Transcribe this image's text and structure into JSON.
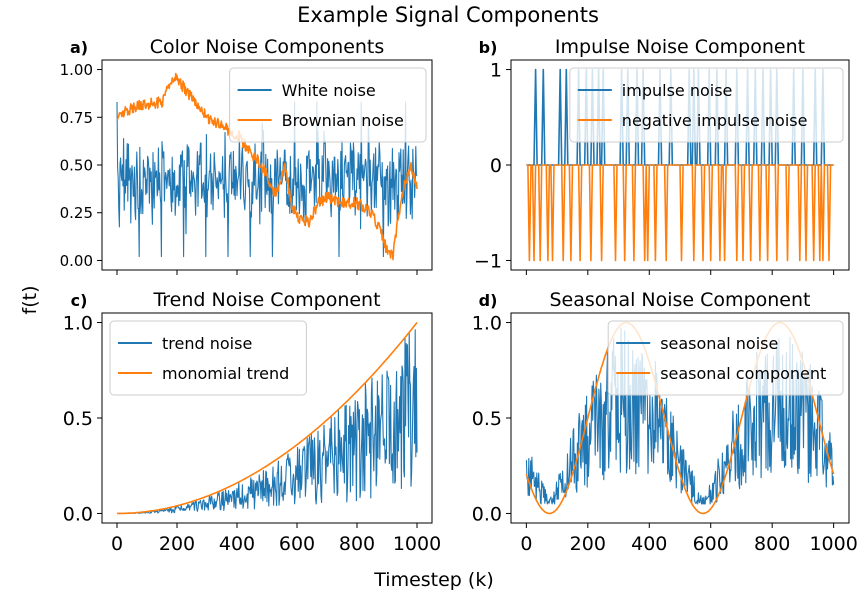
{
  "figure": {
    "suptitle": "Example Signal Components",
    "xlabel": "Timestep (k)",
    "ylabel": "f(t)"
  },
  "colors": {
    "blue": "#1f77b4",
    "orange": "#ff7f0e"
  },
  "chart_data": [
    {
      "id": "a",
      "type": "line",
      "panel_label": "a)",
      "title": "Color Noise Components",
      "xlim": [
        -50,
        1050
      ],
      "ylim": [
        -0.05,
        1.05
      ],
      "yticks": [
        0.0,
        0.25,
        0.5,
        0.75,
        1.0
      ],
      "ytick_labels": [
        "0.00",
        "0.25",
        "0.50",
        "0.75",
        "1.00"
      ],
      "xticks": [
        0,
        200,
        400,
        600,
        800,
        1000
      ],
      "xtick_labels": [],
      "legend_position": "upper right",
      "series": [
        {
          "name": "White noise",
          "kind": "white",
          "color": "#1f77b4",
          "min": 0.0,
          "max": 0.85
        },
        {
          "name": "Brownian noise",
          "kind": "brownian",
          "color": "#ff7f0e",
          "anchors": [
            [
              0,
              0.75
            ],
            [
              50,
              0.8
            ],
            [
              100,
              0.82
            ],
            [
              150,
              0.83
            ],
            [
              190,
              0.97
            ],
            [
              250,
              0.85
            ],
            [
              300,
              0.75
            ],
            [
              350,
              0.7
            ],
            [
              400,
              0.66
            ],
            [
              440,
              0.58
            ],
            [
              480,
              0.5
            ],
            [
              500,
              0.45
            ],
            [
              520,
              0.35
            ],
            [
              540,
              0.38
            ],
            [
              560,
              0.5
            ],
            [
              580,
              0.3
            ],
            [
              600,
              0.23
            ],
            [
              640,
              0.2
            ],
            [
              670,
              0.3
            ],
            [
              700,
              0.33
            ],
            [
              750,
              0.3
            ],
            [
              800,
              0.3
            ],
            [
              850,
              0.25
            ],
            [
              880,
              0.15
            ],
            [
              900,
              0.05
            ],
            [
              920,
              0.03
            ],
            [
              950,
              0.35
            ],
            [
              980,
              0.5
            ],
            [
              1000,
              0.4
            ]
          ]
        }
      ]
    },
    {
      "id": "b",
      "type": "line",
      "panel_label": "b)",
      "title": "Impulse Noise Component",
      "xlim": [
        -50,
        1050
      ],
      "ylim": [
        -1.1,
        1.1
      ],
      "yticks": [
        -1,
        0,
        1
      ],
      "ytick_labels": [
        "−1",
        "0",
        "1"
      ],
      "xticks": [
        0,
        200,
        400,
        600,
        800,
        1000
      ],
      "xtick_labels": [],
      "legend_position": "upper right",
      "series": [
        {
          "name": "impulse noise",
          "kind": "impulse",
          "color": "#1f77b4",
          "sign": 1,
          "positions": [
            30,
            55,
            110,
            130,
            170,
            195,
            215,
            235,
            250,
            310,
            330,
            360,
            380,
            435,
            470,
            530,
            545,
            560,
            595,
            620,
            650,
            685,
            720,
            745,
            770,
            795,
            815,
            870,
            900,
            940,
            965
          ]
        },
        {
          "name": "negative impulse noise",
          "kind": "impulse",
          "color": "#ff7f0e",
          "sign": -1,
          "positions": [
            10,
            25,
            45,
            70,
            85,
            120,
            145,
            175,
            210,
            245,
            290,
            320,
            350,
            385,
            395,
            420,
            455,
            505,
            545,
            575,
            600,
            630,
            645,
            685,
            705,
            730,
            760,
            785,
            815,
            850,
            890,
            910,
            935,
            955,
            965,
            985
          ]
        }
      ]
    },
    {
      "id": "c",
      "type": "line",
      "panel_label": "c)",
      "title": "Trend Noise Component",
      "xlim": [
        -50,
        1050
      ],
      "ylim": [
        -0.05,
        1.05
      ],
      "yticks": [
        0.0,
        0.5,
        1.0
      ],
      "ytick_labels": [
        "0.0",
        "0.5",
        "1.0"
      ],
      "xticks": [
        0,
        200,
        400,
        600,
        800,
        1000
      ],
      "xtick_labels": [
        "0",
        "200",
        "400",
        "600",
        "800",
        "1000"
      ],
      "legend_position": "upper left",
      "series": [
        {
          "name": "trend noise",
          "kind": "trend-noise",
          "color": "#1f77b4",
          "exponent": 2
        },
        {
          "name": "monomial trend",
          "kind": "monomial",
          "color": "#ff7f0e",
          "exponent": 2
        }
      ]
    },
    {
      "id": "d",
      "type": "line",
      "panel_label": "d)",
      "title": "Seasonal Noise Component",
      "xlim": [
        -50,
        1050
      ],
      "ylim": [
        -0.05,
        1.05
      ],
      "yticks": [
        0.0,
        0.5,
        1.0
      ],
      "ytick_labels": [
        "0.0",
        "0.5",
        "1.0"
      ],
      "xticks": [
        0,
        200,
        400,
        600,
        800,
        1000
      ],
      "xtick_labels": [
        "0",
        "200",
        "400",
        "600",
        "800",
        "1000"
      ],
      "legend_position": "upper right",
      "series": [
        {
          "name": "seasonal noise",
          "kind": "seasonal-noise",
          "color": "#1f77b4",
          "period": 500,
          "phase_x": 75
        },
        {
          "name": "seasonal component",
          "kind": "seasonal",
          "color": "#ff7f0e",
          "period": 500,
          "phase_x": 75
        }
      ]
    }
  ]
}
